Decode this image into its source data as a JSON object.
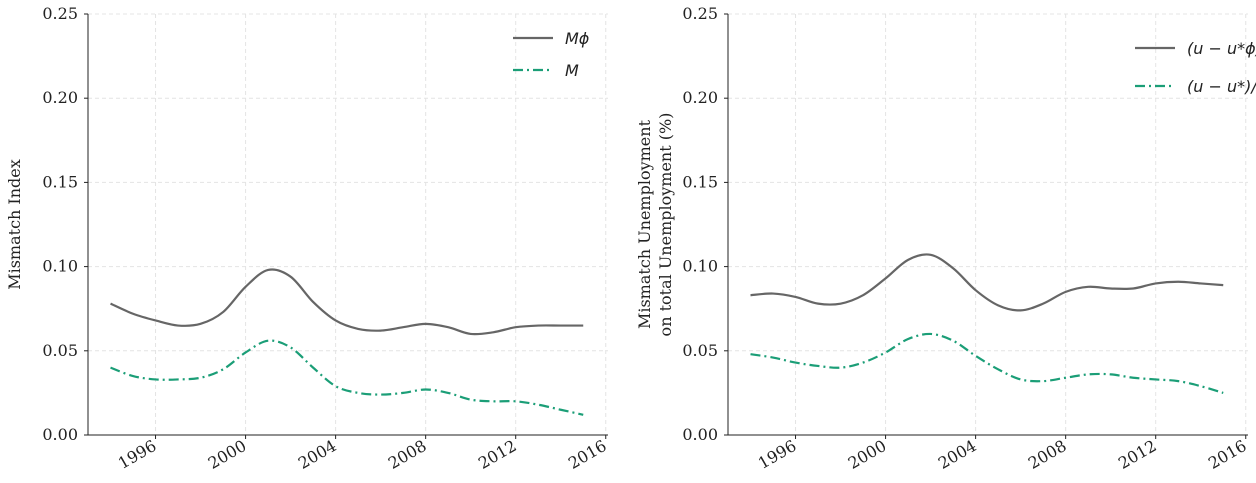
{
  "chart_data": [
    {
      "type": "line",
      "ylabel": [
        "Mismatch Index"
      ],
      "x": [
        1994,
        1995,
        1996,
        1997,
        1998,
        1999,
        2000,
        2001,
        2002,
        2003,
        2004,
        2005,
        2006,
        2007,
        2008,
        2009,
        2010,
        2011,
        2012,
        2013,
        2014,
        2015
      ],
      "series": [
        {
          "name": "Mϕ",
          "color": "#666666",
          "dash": "solid",
          "values": [
            0.078,
            0.072,
            0.068,
            0.065,
            0.066,
            0.073,
            0.088,
            0.098,
            0.094,
            0.079,
            0.068,
            0.063,
            0.062,
            0.064,
            0.066,
            0.064,
            0.06,
            0.061,
            0.064,
            0.065,
            0.065,
            0.065
          ]
        },
        {
          "name": "M",
          "color": "#1b9e77",
          "dash": "dashdot",
          "values": [
            0.04,
            0.035,
            0.033,
            0.033,
            0.034,
            0.039,
            0.049,
            0.056,
            0.052,
            0.04,
            0.029,
            0.025,
            0.024,
            0.025,
            0.027,
            0.025,
            0.021,
            0.02,
            0.02,
            0.018,
            0.015,
            0.012
          ]
        }
      ],
      "xlim": [
        1993,
        2016.1
      ],
      "xticks": [
        1996,
        2000,
        2004,
        2008,
        2012,
        2016
      ],
      "ylim": [
        0,
        0.25
      ],
      "yticks": [
        {
          "value": 0,
          "label": "0.00"
        },
        {
          "value": 0.05,
          "label": "0.05"
        },
        {
          "value": 0.1,
          "label": "0.10"
        },
        {
          "value": 0.15,
          "label": "0.15"
        },
        {
          "value": 0.2,
          "label": "0.20"
        },
        {
          "value": 0.25,
          "label": "0.25"
        }
      ],
      "grid": true,
      "legend": "upper right"
    },
    {
      "type": "line",
      "ylabel": [
        "Mismatch Unemployment",
        "on total Unemployment  (%)"
      ],
      "x": [
        1994,
        1995,
        1996,
        1997,
        1998,
        1999,
        2000,
        2001,
        2002,
        2003,
        2004,
        2005,
        2006,
        2007,
        2008,
        2009,
        2010,
        2011,
        2012,
        2013,
        2014,
        2015
      ],
      "series": [
        {
          "name": "(u − u*ϕ)/u",
          "color": "#666666",
          "dash": "solid",
          "values": [
            0.083,
            0.084,
            0.082,
            0.078,
            0.078,
            0.083,
            0.093,
            0.104,
            0.107,
            0.099,
            0.086,
            0.077,
            0.074,
            0.078,
            0.085,
            0.088,
            0.087,
            0.087,
            0.09,
            0.091,
            0.09,
            0.089
          ]
        },
        {
          "name": "(u − u*)/u",
          "color": "#1b9e77",
          "dash": "dashdot",
          "values": [
            0.048,
            0.046,
            0.043,
            0.041,
            0.04,
            0.043,
            0.049,
            0.057,
            0.06,
            0.056,
            0.047,
            0.039,
            0.033,
            0.032,
            0.034,
            0.036,
            0.036,
            0.034,
            0.033,
            0.032,
            0.029,
            0.025
          ]
        }
      ],
      "xlim": [
        1993,
        2016.1
      ],
      "xticks": [
        1996,
        2000,
        2004,
        2008,
        2012,
        2016
      ],
      "ylim": [
        0,
        0.25
      ],
      "yticks": [
        {
          "value": 0,
          "label": "0.00"
        },
        {
          "value": 0.05,
          "label": "0.05"
        },
        {
          "value": 0.1,
          "label": "0.10"
        },
        {
          "value": 0.15,
          "label": "0.15"
        },
        {
          "value": 0.2,
          "label": "0.20"
        },
        {
          "value": 0.25,
          "label": "0.25"
        }
      ],
      "grid": true,
      "legend": "upper right"
    }
  ]
}
